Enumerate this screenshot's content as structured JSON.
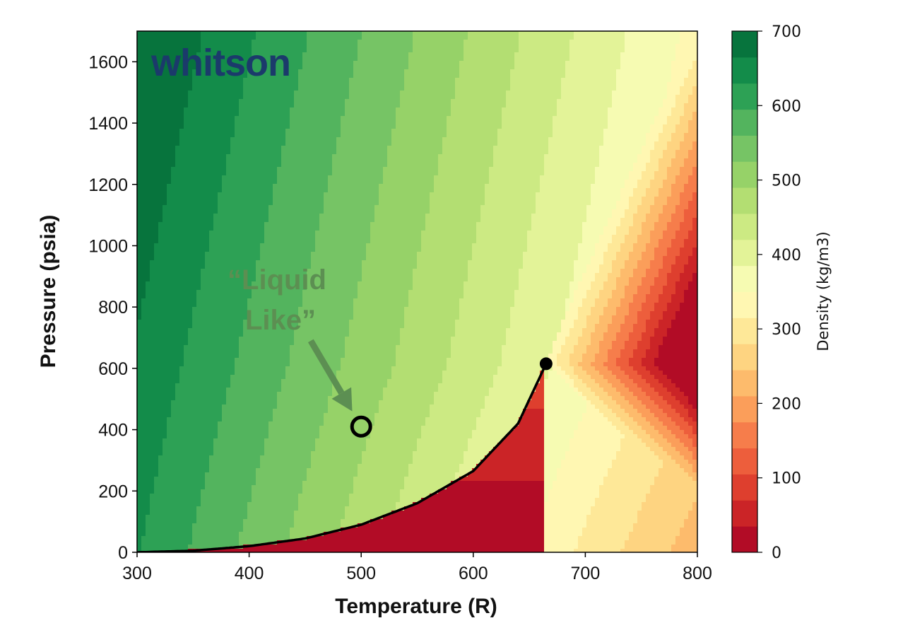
{
  "chart_data": {
    "type": "heatmap",
    "subtype": "filled-contour phase diagram",
    "xlabel": "Temperature (R)",
    "ylabel": "Pressure (psia)",
    "xlim": [
      300,
      800
    ],
    "ylim": [
      0,
      1700
    ],
    "xticks": [
      300,
      400,
      500,
      600,
      700,
      800
    ],
    "yticks": [
      0,
      200,
      400,
      600,
      800,
      1000,
      1200,
      1400,
      1600
    ],
    "colorbar": {
      "label": "Density (kg/m3)",
      "range": [
        0,
        700
      ],
      "ticks": [
        0,
        100,
        200,
        300,
        400,
        500,
        600,
        700
      ],
      "colormap": "RdYlGn"
    },
    "grid": false,
    "saturation_curve": {
      "name": "vapor pressure curve",
      "color": "#000000",
      "x": [
        300,
        350,
        400,
        450,
        500,
        550,
        600,
        640,
        665
      ],
      "y": [
        0,
        5,
        20,
        45,
        90,
        160,
        265,
        420,
        615
      ]
    },
    "critical_point": {
      "x": 665,
      "y": 615,
      "color": "#000000"
    },
    "marked_point": {
      "x": 500,
      "y": 410
    },
    "annotation": {
      "line1": "“Liquid",
      "line2": "Like”",
      "color": "#5c8f52",
      "arrow_from": {
        "x": 455,
        "y": 690
      },
      "arrow_to": {
        "x": 492,
        "y": 460
      }
    },
    "logo_text": "whitson",
    "logo_color": "#1b3a6b"
  }
}
